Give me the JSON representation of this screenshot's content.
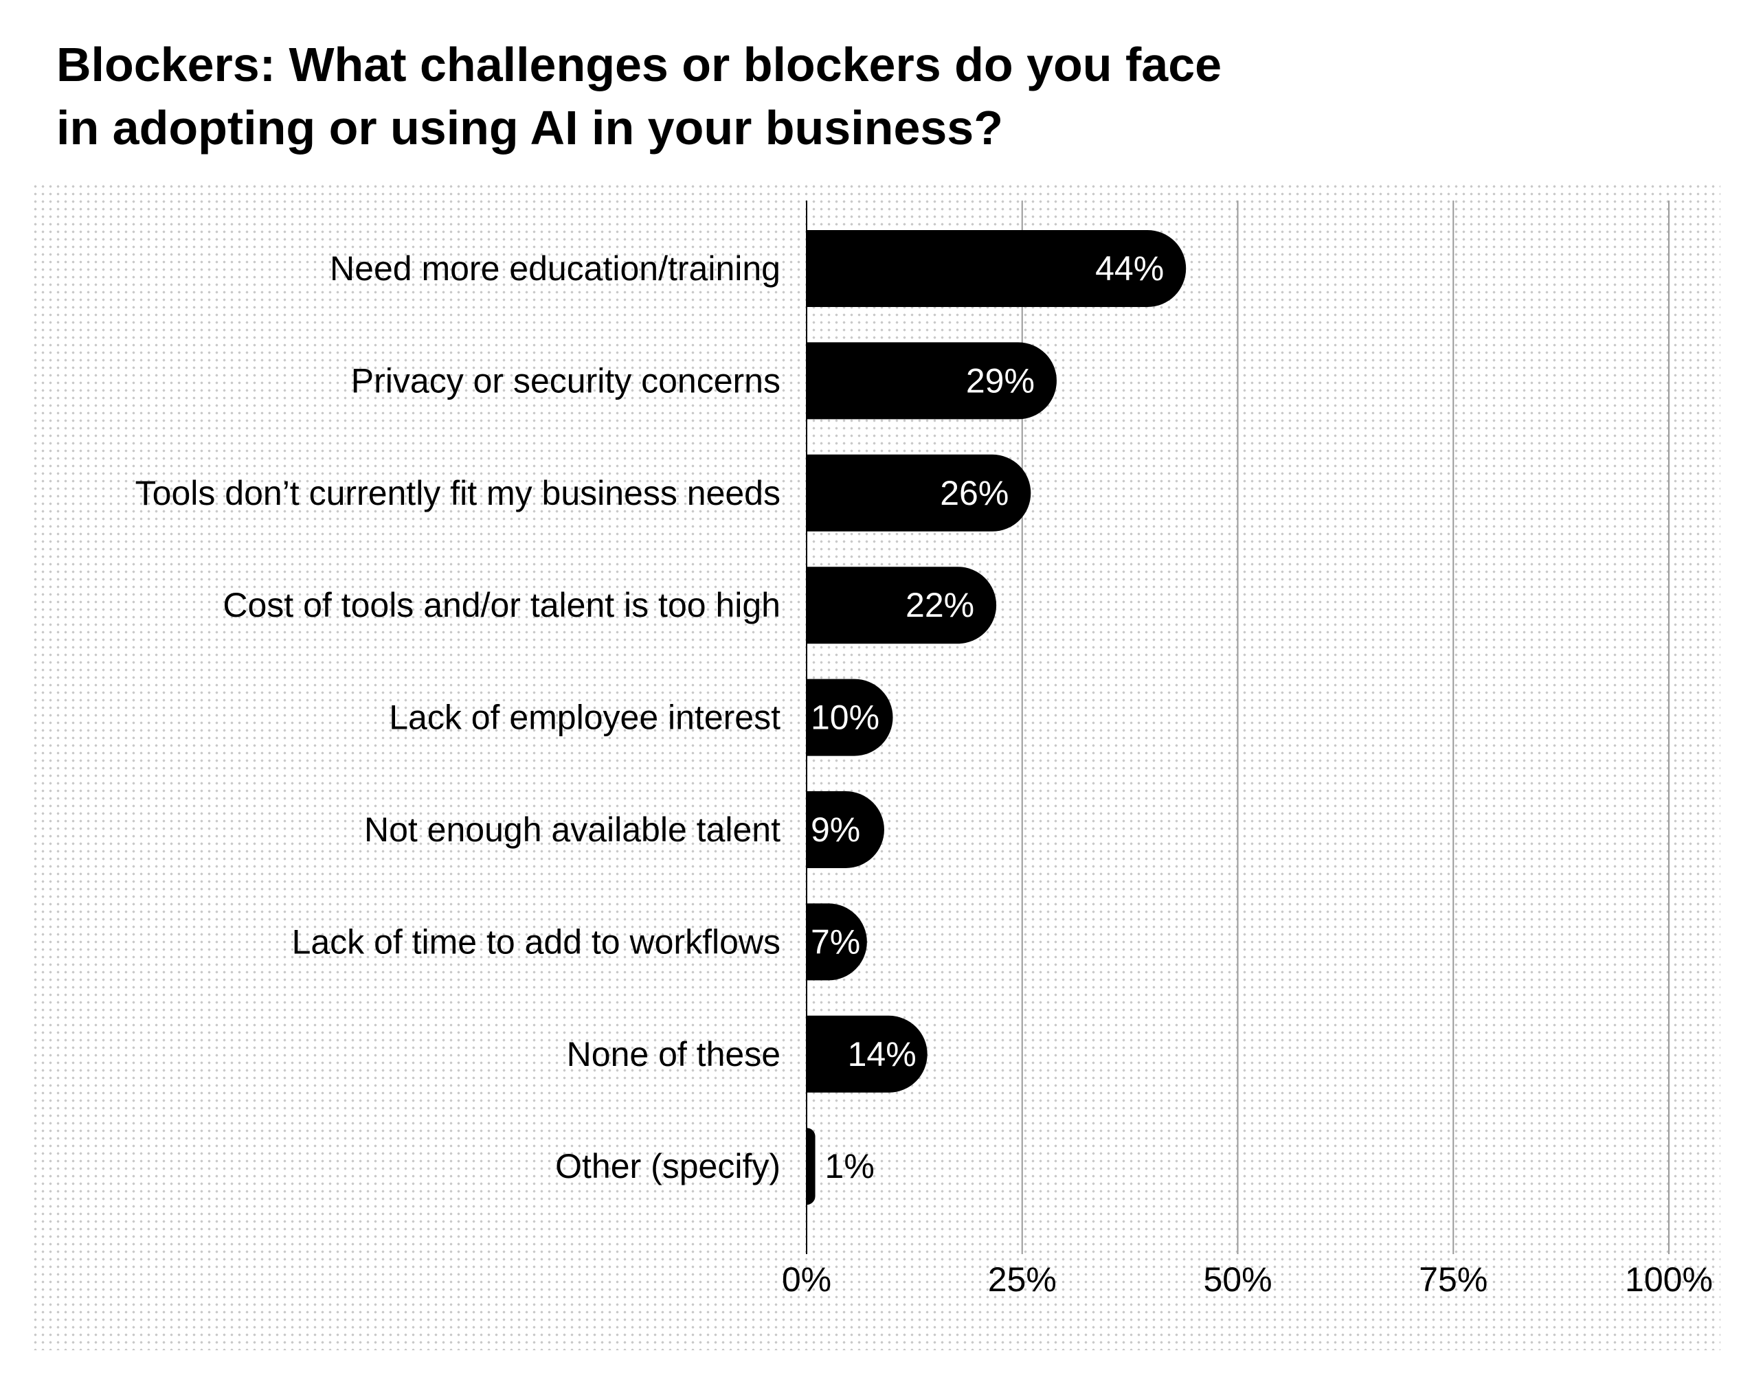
{
  "title_lines": [
    "Blockers: What challenges or blockers do you face",
    "in adopting or using AI in your business?"
  ],
  "chart_data": {
    "type": "bar",
    "orientation": "horizontal",
    "categories": [
      "Need more education/training",
      "Privacy or security concerns",
      "Tools don’t currently fit my business needs",
      "Cost of tools and/or talent is too high",
      "Lack of employee interest",
      "Not enough available talent",
      "Lack of time to add to workflows",
      "None of these",
      "Other (specify)"
    ],
    "values": [
      44,
      29,
      26,
      22,
      10,
      9,
      7,
      14,
      1
    ],
    "data_labels": [
      "44%",
      "29%",
      "26%",
      "22%",
      "10%",
      "9%",
      "7%",
      "14%",
      "1%"
    ],
    "x_ticks": [
      0,
      25,
      50,
      75,
      100
    ],
    "x_tick_labels": [
      "0%",
      "25%",
      "50%",
      "75%",
      "100%"
    ],
    "xlim": [
      0,
      100
    ],
    "grid": "vertical",
    "bar_color": "#000000",
    "label_color": "#ffffff",
    "grid_color": "#9a9a9a"
  }
}
